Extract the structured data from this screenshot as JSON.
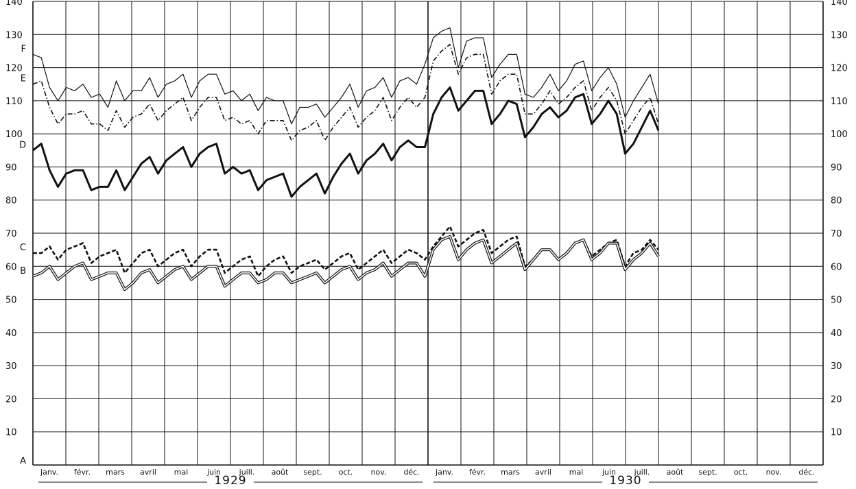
{
  "chart_data": {
    "type": "line",
    "ylim": [
      0,
      140
    ],
    "y_ticks": [
      "140",
      "130",
      "120",
      "110",
      "100",
      "90",
      "80",
      "70",
      "60",
      "50",
      "40",
      "30",
      "20",
      "10"
    ],
    "months": [
      "janv.",
      "févr.",
      "mars",
      "avril",
      "mai",
      "juin",
      "juill.",
      "août",
      "sept.",
      "oct.",
      "nov.",
      "déc.",
      "janv.",
      "févr.",
      "mars",
      "avril",
      "mai",
      "juin",
      "juill.",
      "août",
      "sept.",
      "oct.",
      "nov.",
      "déc."
    ],
    "years": [
      "1929",
      "1930"
    ],
    "grid": true,
    "series": [
      {
        "name": "F",
        "style": "thin-solid",
        "values": [
          124,
          123,
          114,
          110,
          114,
          113,
          115,
          111,
          112,
          108,
          116,
          110,
          113,
          113,
          117,
          111,
          115,
          116,
          118,
          111,
          116,
          118,
          118,
          112,
          113,
          110,
          112,
          107,
          111,
          110,
          110,
          103,
          108,
          108,
          109,
          105,
          108,
          111,
          115,
          108,
          113,
          114,
          117,
          111,
          116,
          117,
          115,
          121,
          129,
          131,
          132,
          120,
          128,
          129,
          129,
          117,
          121,
          124,
          124,
          112,
          111,
          114,
          118,
          113,
          116,
          121,
          122,
          113,
          117,
          120,
          115,
          105,
          110,
          114,
          118,
          109
        ]
      },
      {
        "name": "E",
        "style": "dash-dot",
        "values": [
          115,
          116,
          108,
          103,
          106,
          106,
          107,
          103,
          103,
          101,
          107,
          102,
          105,
          106,
          109,
          104,
          107,
          109,
          111,
          104,
          108,
          111,
          111,
          104,
          105,
          103,
          104,
          100,
          104,
          104,
          104,
          98,
          101,
          102,
          104,
          98,
          102,
          105,
          108,
          102,
          105,
          107,
          111,
          104,
          108,
          111,
          108,
          111,
          122,
          125,
          127,
          118,
          123,
          124,
          124,
          112,
          116,
          118,
          118,
          106,
          106,
          109,
          113,
          109,
          111,
          114,
          116,
          107,
          111,
          114,
          110,
          100,
          104,
          108,
          111,
          103
        ]
      },
      {
        "name": "D",
        "style": "thick-solid",
        "values": [
          95,
          97,
          89,
          84,
          88,
          89,
          89,
          83,
          84,
          84,
          89,
          83,
          87,
          91,
          93,
          88,
          92,
          94,
          96,
          90,
          94,
          96,
          97,
          88,
          90,
          88,
          89,
          83,
          86,
          87,
          88,
          81,
          84,
          86,
          88,
          82,
          87,
          91,
          94,
          88,
          92,
          94,
          97,
          92,
          96,
          98,
          96,
          96,
          106,
          111,
          114,
          107,
          110,
          113,
          113,
          103,
          106,
          110,
          109,
          99,
          102,
          106,
          108,
          105,
          107,
          111,
          112,
          103,
          106,
          110,
          106,
          94,
          97,
          102,
          107,
          101
        ]
      },
      {
        "name": "C",
        "style": "thick-dashed",
        "values": [
          64,
          64,
          66,
          62,
          65,
          66,
          67,
          61,
          63,
          64,
          65,
          58,
          61,
          64,
          65,
          60,
          62,
          64,
          65,
          60,
          63,
          65,
          65,
          58,
          60,
          62,
          63,
          57,
          60,
          62,
          63,
          58,
          60,
          61,
          62,
          59,
          61,
          63,
          64,
          59,
          61,
          63,
          65,
          61,
          63,
          65,
          64,
          62,
          66,
          69,
          72,
          66,
          68,
          70,
          71,
          64,
          66,
          68,
          69,
          60,
          62,
          65,
          65,
          62,
          64,
          67,
          68,
          63,
          65,
          67,
          68,
          60,
          64,
          65,
          68,
          65
        ]
      },
      {
        "name": "B",
        "style": "double",
        "values": [
          57,
          58,
          60,
          56,
          58,
          60,
          61,
          56,
          57,
          58,
          58,
          53,
          55,
          58,
          59,
          55,
          57,
          59,
          60,
          56,
          58,
          60,
          60,
          54,
          56,
          58,
          58,
          55,
          56,
          58,
          58,
          55,
          56,
          57,
          58,
          55,
          57,
          59,
          60,
          56,
          58,
          59,
          61,
          57,
          59,
          61,
          61,
          57,
          65,
          68,
          69,
          62,
          65,
          67,
          68,
          61,
          63,
          65,
          67,
          59,
          62,
          65,
          65,
          62,
          64,
          67,
          68,
          62,
          64,
          67,
          67,
          59,
          62,
          64,
          67,
          63
        ]
      }
    ],
    "series_label_A": "A"
  }
}
